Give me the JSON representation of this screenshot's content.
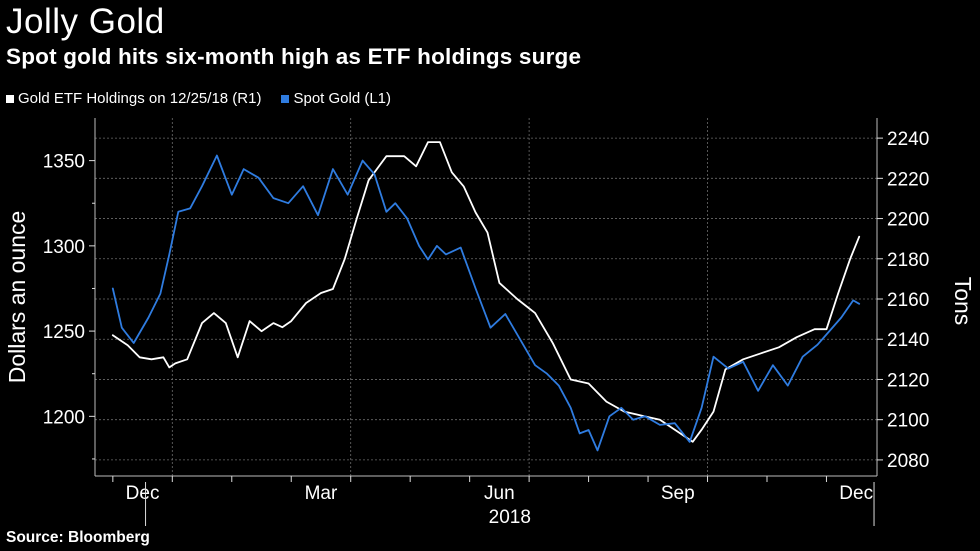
{
  "header": {
    "title": "Jolly Gold",
    "subtitle": "Spot gold hits six-month high as ETF holdings surge"
  },
  "legend": {
    "etf_label": "Gold ETF Holdings on 12/25/18 (R1)",
    "spot_label": "Spot Gold (L1)"
  },
  "footer": {
    "source": "Source: Bloomberg"
  },
  "colors": {
    "background": "#000000",
    "etf": "#ffffff",
    "spot": "#2f7ce0",
    "grid": "#6b6b6b"
  },
  "chart_data": {
    "type": "line",
    "title": "Jolly Gold",
    "subtitle": "Spot gold hits six-month high as ETF holdings surge",
    "x_unit": "months since 2017-12-01",
    "xlim": [
      -0.3,
      12.85
    ],
    "x_ticks": [
      {
        "label": "Dec",
        "x": 0.5
      },
      {
        "label": "Mar",
        "x": 3.5
      },
      {
        "label": "Jun",
        "x": 6.5
      },
      {
        "label": "Sep",
        "x": 9.5
      },
      {
        "label": "Dec",
        "x": 12.5
      }
    ],
    "x_boundaries": [
      0.55,
      12.8
    ],
    "year_label": "2018",
    "left_axis": {
      "label": "Dollars an ounce",
      "ylim": [
        1165,
        1375
      ],
      "ticks": [
        1200,
        1250,
        1300,
        1350
      ]
    },
    "right_axis": {
      "label": "Tons",
      "ylim": [
        2072,
        2250
      ],
      "ticks": [
        2080,
        2100,
        2120,
        2140,
        2160,
        2180,
        2200,
        2220,
        2240
      ]
    },
    "series": [
      {
        "name": "Gold ETF Holdings on 12/25/18 (R1)",
        "axis": "right",
        "color": "#ffffff",
        "x": [
          0.0,
          0.25,
          0.45,
          0.65,
          0.85,
          0.95,
          1.05,
          1.25,
          1.5,
          1.7,
          1.9,
          2.1,
          2.3,
          2.5,
          2.7,
          2.85,
          3.0,
          3.25,
          3.5,
          3.7,
          3.9,
          4.1,
          4.3,
          4.6,
          4.9,
          5.1,
          5.3,
          5.5,
          5.7,
          5.9,
          6.1,
          6.3,
          6.5,
          6.8,
          7.1,
          7.4,
          7.7,
          8.0,
          8.3,
          8.6,
          8.9,
          9.2,
          9.5,
          9.75,
          9.9,
          10.1,
          10.3,
          10.6,
          10.9,
          11.2,
          11.5,
          11.8,
          12.0,
          12.2,
          12.4,
          12.55
        ],
        "values": [
          2142,
          2137,
          2131,
          2130,
          2131,
          2126,
          2128,
          2130,
          2148,
          2153,
          2148,
          2131,
          2149,
          2144,
          2148,
          2146,
          2149,
          2158,
          2163,
          2165,
          2180,
          2200,
          2219,
          2231,
          2231,
          2226,
          2238,
          2238,
          2223,
          2216,
          2203,
          2193,
          2168,
          2160,
          2153,
          2138,
          2120,
          2118,
          2109,
          2104,
          2102,
          2100,
          2094,
          2089,
          2095,
          2104,
          2125,
          2130,
          2133,
          2136,
          2141,
          2145,
          2145,
          2163,
          2180,
          2191
        ]
      },
      {
        "name": "Spot Gold (L1)",
        "axis": "left",
        "color": "#2f7ce0",
        "x": [
          0.0,
          0.15,
          0.35,
          0.6,
          0.8,
          0.95,
          1.1,
          1.3,
          1.5,
          1.75,
          2.0,
          2.2,
          2.45,
          2.7,
          2.95,
          3.2,
          3.45,
          3.7,
          3.95,
          4.2,
          4.4,
          4.6,
          4.75,
          4.95,
          5.15,
          5.3,
          5.45,
          5.6,
          5.85,
          6.1,
          6.35,
          6.6,
          6.85,
          7.1,
          7.3,
          7.5,
          7.7,
          7.85,
          8.0,
          8.15,
          8.35,
          8.55,
          8.75,
          8.95,
          9.2,
          9.45,
          9.7,
          9.9,
          10.1,
          10.35,
          10.6,
          10.85,
          11.1,
          11.35,
          11.6,
          11.85,
          12.05,
          12.25,
          12.45,
          12.55
        ],
        "values": [
          1275,
          1252,
          1243,
          1258,
          1272,
          1295,
          1320,
          1322,
          1335,
          1353,
          1330,
          1345,
          1340,
          1328,
          1325,
          1335,
          1318,
          1345,
          1330,
          1350,
          1342,
          1320,
          1325,
          1316,
          1300,
          1292,
          1300,
          1295,
          1299,
          1275,
          1252,
          1260,
          1245,
          1230,
          1225,
          1218,
          1205,
          1190,
          1192,
          1180,
          1200,
          1205,
          1198,
          1200,
          1195,
          1196,
          1185,
          1205,
          1235,
          1228,
          1232,
          1215,
          1230,
          1218,
          1235,
          1242,
          1250,
          1258,
          1268,
          1266
        ]
      }
    ]
  }
}
